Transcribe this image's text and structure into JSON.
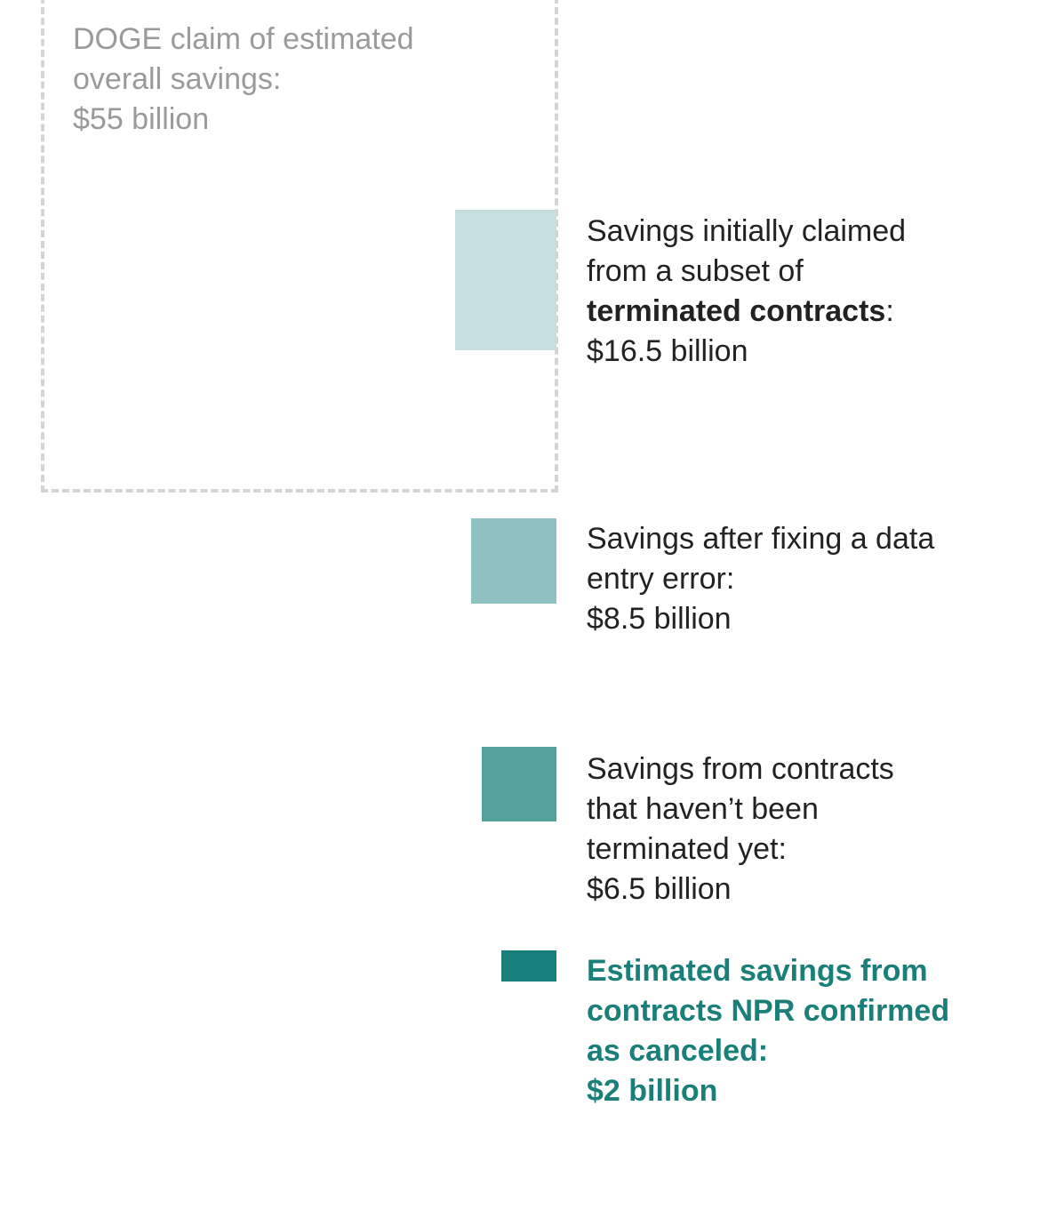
{
  "chart_data": {
    "type": "bar",
    "unit": "billion",
    "series": [
      {
        "key": "doge_claim",
        "text_lines": [
          "DOGE claim of estimated",
          "overall savings:"
        ],
        "value_text": "$55 billion",
        "value": 55,
        "color": "#d4d4d4",
        "style": "dashed-outline"
      },
      {
        "key": "initial_subset",
        "text_lines": [
          "Savings initially claimed",
          "from a subset of"
        ],
        "bold_text": "terminated contracts",
        "bold_suffix": ":",
        "value_text": "$16.5 billion",
        "value": 16.5,
        "color": "#c5dfdf"
      },
      {
        "key": "after_fix",
        "text_lines": [
          "Savings after fixing a data",
          "entry error:"
        ],
        "value_text": "$8.5 billion",
        "value": 8.5,
        "color": "#8fc1c0"
      },
      {
        "key": "not_terminated",
        "text_lines": [
          "Savings from contracts",
          "that haven’t been",
          "terminated yet:"
        ],
        "value_text": "$6.5 billion",
        "value": 6.5,
        "color": "#52a19d"
      },
      {
        "key": "confirmed",
        "text_lines": [
          "Estimated savings from",
          "contracts NPR confirmed",
          "as canceled:"
        ],
        "value_text": "$2 billion",
        "value": 2,
        "color": "#177f7a",
        "highlight": true
      }
    ]
  }
}
